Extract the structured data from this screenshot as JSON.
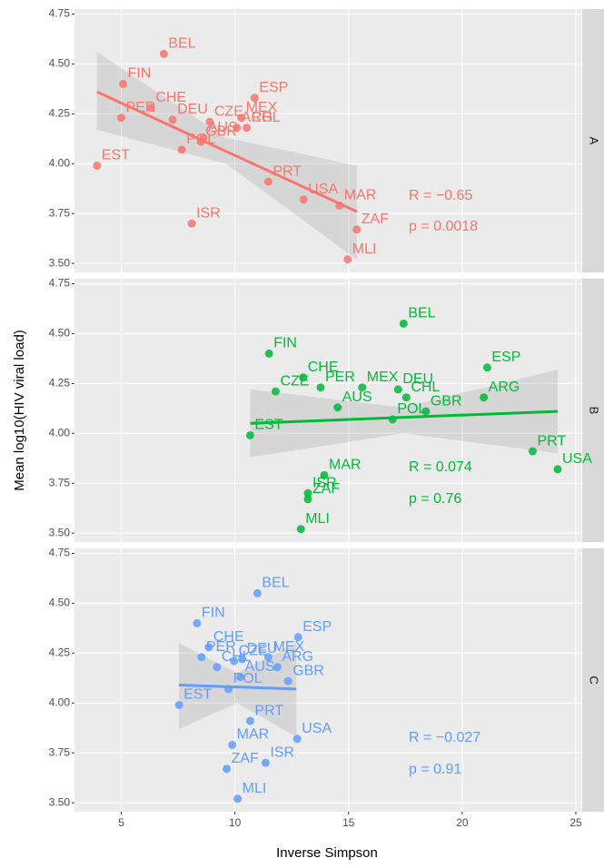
{
  "chart_data": {
    "type": "scatter",
    "x_label": "Inverse Simpson",
    "y_label": "Mean log10(HIV viral load)",
    "xlim": [
      2.94,
      25.24
    ],
    "xticks": [
      5,
      10,
      15,
      20,
      25
    ],
    "ylim": [
      3.455,
      4.775
    ],
    "yticks": [
      {
        "value": 3.5,
        "label": "3.50"
      },
      {
        "value": 3.75,
        "label": "3.75"
      },
      {
        "value": 4.0,
        "label": "4.00"
      },
      {
        "value": 4.25,
        "label": "4.25"
      },
      {
        "value": 4.5,
        "label": "4.50"
      },
      {
        "value": 4.75,
        "label": "4.75"
      }
    ],
    "grid": true,
    "point_labels": [
      "BEL",
      "FIN",
      "ESP",
      "CHE",
      "PER",
      "MEX",
      "DEU",
      "CZE",
      "ARG",
      "CHL",
      "AUS",
      "POL",
      "GBR",
      "EST",
      "PRT",
      "USA",
      "MAR",
      "ISR",
      "ZAF",
      "MLI"
    ],
    "y": [
      4.55,
      4.4,
      4.33,
      4.28,
      4.23,
      4.23,
      4.22,
      4.21,
      4.18,
      4.18,
      4.13,
      4.07,
      4.11,
      3.99,
      3.91,
      3.82,
      3.79,
      3.7,
      3.67,
      3.52
    ],
    "panels": [
      {
        "strip": "A",
        "color": "#F8766D",
        "x": [
          6.87,
          5.08,
          10.87,
          6.31,
          5.0,
          10.28,
          7.26,
          8.89,
          10.08,
          10.52,
          8.61,
          7.66,
          8.5,
          3.93,
          11.47,
          13.02,
          14.6,
          8.1,
          15.36,
          14.96
        ],
        "fit": {
          "x": [
            3.93,
            15.36
          ],
          "y": [
            4.36,
            3.76
          ]
        },
        "band": {
          "x": [
            3.93,
            9.6,
            15.36
          ],
          "lower": [
            4.17,
            4.0,
            3.52
          ],
          "upper": [
            4.56,
            4.13,
            3.99
          ]
        },
        "annotations": [
          "R = −0.65",
          "p = 0.0018"
        ]
      },
      {
        "strip": "B",
        "color": "#00BA38",
        "x": [
          17.42,
          11.5,
          21.1,
          13.0,
          13.77,
          15.6,
          17.18,
          11.79,
          20.95,
          17.54,
          14.52,
          16.94,
          18.4,
          10.67,
          23.1,
          24.2,
          13.93,
          13.21,
          13.21,
          12.9
        ],
        "fit": {
          "x": [
            10.67,
            24.2
          ],
          "y": [
            4.05,
            4.11
          ]
        },
        "band": {
          "x": [
            10.67,
            17.4,
            24.2
          ],
          "lower": [
            3.88,
            4.0,
            3.9
          ],
          "upper": [
            4.22,
            4.13,
            4.32
          ]
        },
        "annotations": [
          "R = 0.074",
          "p = 0.76"
        ]
      },
      {
        "strip": "C",
        "color": "#619CFF",
        "x": [
          10.99,
          8.33,
          12.78,
          8.85,
          8.53,
          11.47,
          10.32,
          9.96,
          11.87,
          9.21,
          10.24,
          9.72,
          12.34,
          7.54,
          10.67,
          12.74,
          9.88,
          11.35,
          9.64,
          10.12
        ],
        "fit": {
          "x": [
            7.54,
            12.7
          ],
          "y": [
            4.09,
            4.07
          ]
        },
        "band": {
          "x": [
            7.54,
            10.1,
            12.7
          ],
          "lower": [
            3.87,
            4.0,
            3.83
          ],
          "upper": [
            4.3,
            4.15,
            4.3
          ]
        },
        "annotations": [
          "R = −0.027",
          "p = 0.91"
        ]
      }
    ]
  }
}
